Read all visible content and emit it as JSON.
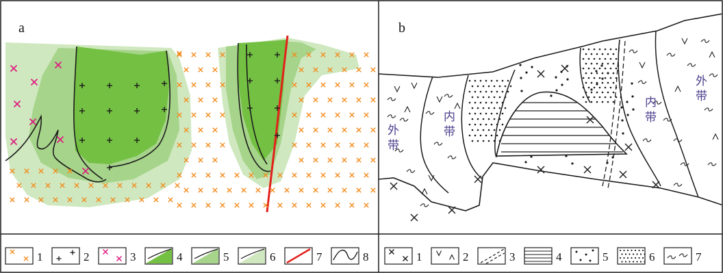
{
  "panels": {
    "a": {
      "label": "a"
    },
    "b": {
      "label": "b",
      "zones": {
        "outer_left": "外\n带",
        "inner_left": "内\n带",
        "inner_right": "内\n带",
        "outer_right": "外\n带"
      }
    }
  },
  "legend_a": [
    "1",
    "2",
    "3",
    "4",
    "5",
    "6",
    "7",
    "8"
  ],
  "legend_b": [
    "1",
    "2",
    "3",
    "4",
    "5",
    "6",
    "7"
  ],
  "colors": {
    "orange_cross": "#f28c1e",
    "magenta_cross": "#e0157f",
    "green_dark": "#74c043",
    "green_mid": "#a6d48a",
    "green_light": "#cfe8bf",
    "fault_red": "#e3201b",
    "line": "#1a1a1a",
    "zone_text": "#4a3f8c"
  }
}
